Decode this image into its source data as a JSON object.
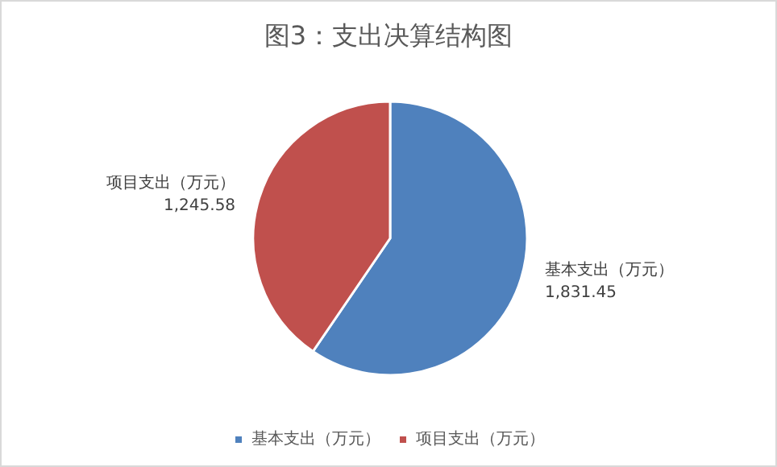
{
  "chart_data": {
    "type": "pie",
    "title": "图3：支出决算结构图",
    "categories": [
      "基本支出（万元）",
      "项目支出（万元）"
    ],
    "values": [
      1831.45,
      1245.58
    ],
    "value_labels": [
      "1,831.45",
      "1,245.58"
    ],
    "colors": [
      "#4f81bd",
      "#c0504d"
    ],
    "legend": "bottom"
  }
}
